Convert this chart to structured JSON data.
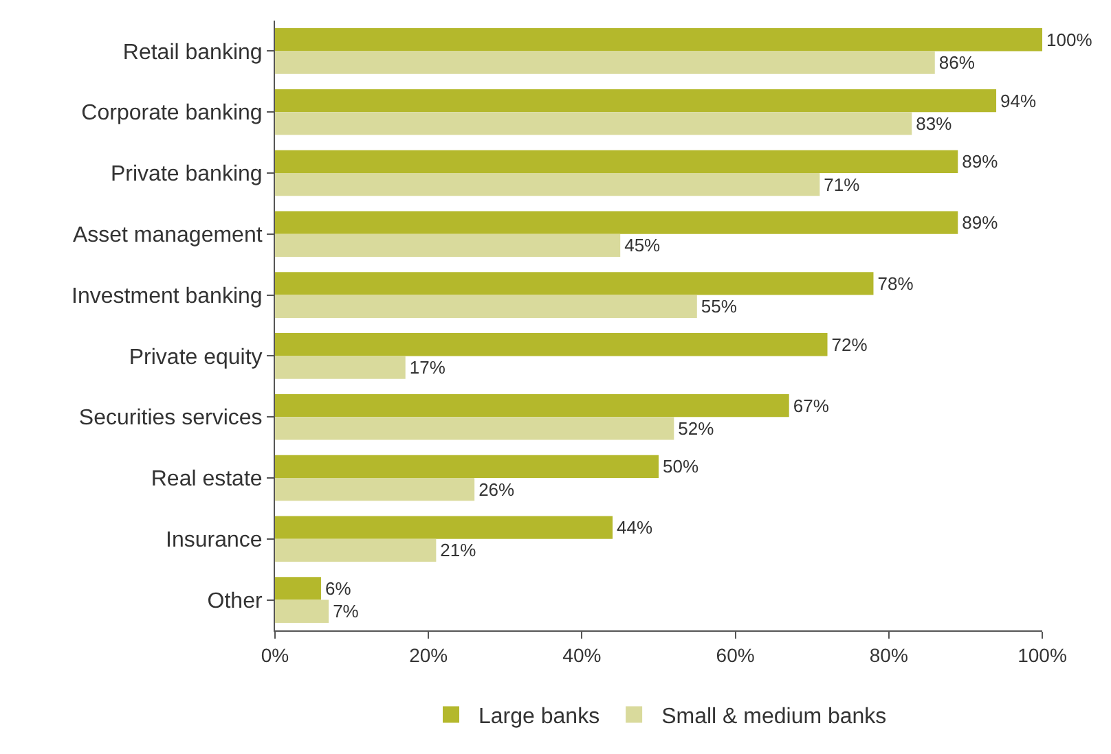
{
  "chart_data": {
    "type": "bar",
    "orientation": "horizontal",
    "categories": [
      "Retail banking",
      "Corporate banking",
      "Private banking",
      "Asset management",
      "Investment banking",
      "Private equity",
      "Securities services",
      "Real estate",
      "Insurance",
      "Other"
    ],
    "series": [
      {
        "name": "Large banks",
        "color": "#b4b82c",
        "values": [
          100,
          94,
          89,
          89,
          78,
          72,
          67,
          50,
          44,
          6
        ],
        "value_labels": [
          "100%",
          "94%",
          "89%",
          "89%",
          "78%",
          "72%",
          "67%",
          "50%",
          "44%",
          "6%"
        ]
      },
      {
        "name": "Small & medium banks",
        "color": "#d9da9c",
        "values": [
          86,
          83,
          71,
          45,
          55,
          17,
          52,
          26,
          21,
          7
        ],
        "value_labels": [
          "86%",
          "83%",
          "71%",
          "45%",
          "55%",
          "17%",
          "52%",
          "26%",
          "21%",
          "7%"
        ]
      }
    ],
    "xlim": [
      0,
      100
    ],
    "xticks": [
      {
        "value": 0,
        "label": "0%"
      },
      {
        "value": 20,
        "label": "20%"
      },
      {
        "value": 40,
        "label": "40%"
      },
      {
        "value": 60,
        "label": "60%"
      },
      {
        "value": 80,
        "label": "80%"
      },
      {
        "value": 100,
        "label": "100%"
      }
    ],
    "grid": false,
    "legend": "bottom"
  }
}
